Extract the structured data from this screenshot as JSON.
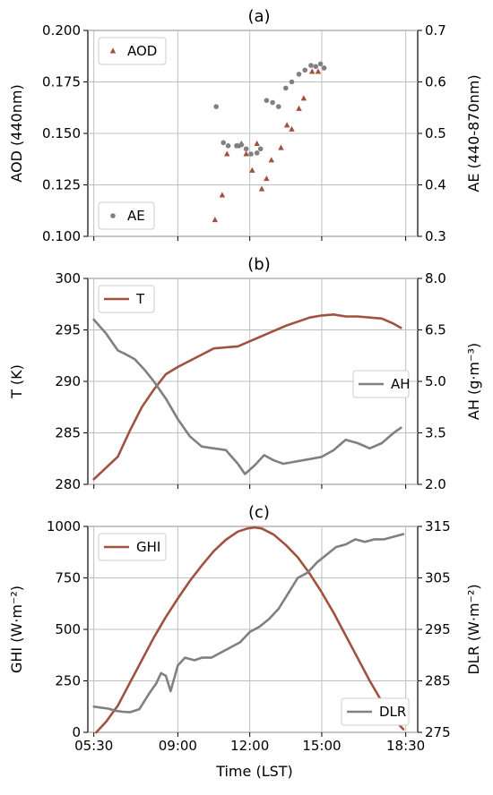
{
  "figure": {
    "xlabel": "Time (LST)"
  },
  "colors": {
    "brown": "#a0523f",
    "gray": "#808080",
    "grid": "#bfbfbf"
  },
  "panels": [
    {
      "id": "a",
      "title": "(a)",
      "xlim": [
        5.25,
        19.0
      ],
      "xticks": [
        5.5,
        9,
        12,
        15,
        18.5
      ],
      "xticklabels": [
        "",
        "",
        "",
        "",
        ""
      ],
      "left": {
        "label": "AOD (440nm)",
        "ylim": [
          0.1,
          0.2
        ],
        "ticks": [
          0.1,
          0.125,
          0.15,
          0.175,
          0.2
        ],
        "ticklabels": [
          "0.100",
          "0.125",
          "0.150",
          "0.175",
          "0.200"
        ]
      },
      "right": {
        "label": "AE (440-870nm)",
        "ylim": [
          0.3,
          0.7
        ],
        "ticks": [
          0.3,
          0.4,
          0.5,
          0.6,
          0.7
        ],
        "ticklabels": [
          "0.3",
          "0.4",
          "0.5",
          "0.6",
          "0.7"
        ]
      },
      "legends": [
        {
          "label": "AOD",
          "series": "AOD",
          "pos": "top-left"
        },
        {
          "label": "AE",
          "series": "AE",
          "pos": "bottom-left"
        }
      ]
    },
    {
      "id": "b",
      "title": "(b)",
      "xlim": [
        5.25,
        19.0
      ],
      "xticks": [
        5.5,
        9,
        12,
        15,
        18.5
      ],
      "xticklabels": [
        "",
        "",
        "",
        "",
        ""
      ],
      "left": {
        "label": "T (K)",
        "ylim": [
          280,
          300
        ],
        "ticks": [
          280,
          285,
          290,
          295,
          300
        ],
        "ticklabels": [
          "280",
          "285",
          "290",
          "295",
          "300"
        ]
      },
      "right": {
        "label": "AH (g·m⁻³)",
        "ylim": [
          2.0,
          8.0
        ],
        "ticks": [
          2.0,
          3.5,
          5.0,
          6.5,
          8.0
        ],
        "ticklabels": [
          "2.0",
          "3.5",
          "5.0",
          "6.5",
          "8.0"
        ]
      },
      "legends": [
        {
          "label": "T",
          "series": "T",
          "pos": "top-left"
        },
        {
          "label": "AH",
          "series": "AH",
          "pos": "center-right"
        }
      ]
    },
    {
      "id": "c",
      "title": "(c)",
      "xlim": [
        5.25,
        19.0
      ],
      "xticks": [
        5.5,
        9,
        12,
        15,
        18.5
      ],
      "xticklabels": [
        "05:30",
        "09:00",
        "12:00",
        "15:00",
        "18:30"
      ],
      "left": {
        "label": "GHI (W·m⁻²)",
        "ylim": [
          0,
          1000
        ],
        "ticks": [
          0,
          250,
          500,
          750,
          1000
        ],
        "ticklabels": [
          "0",
          "250",
          "500",
          "750",
          "1000"
        ]
      },
      "right": {
        "label": "DLR (W·m⁻²)",
        "ylim": [
          275,
          315
        ],
        "ticks": [
          275,
          285,
          295,
          305,
          315
        ],
        "ticklabels": [
          "275",
          "285",
          "295",
          "305",
          "315"
        ]
      },
      "legends": [
        {
          "label": "GHI",
          "series": "GHI",
          "pos": "top-left"
        },
        {
          "label": "DLR",
          "series": "DLR",
          "pos": "bottom-right"
        }
      ]
    }
  ],
  "chart_data": [
    {
      "type": "scatter",
      "title": "(a)",
      "xlabel": "",
      "series": [
        {
          "name": "AOD",
          "axis": "left",
          "marker": "triangle",
          "color": "#a0523f",
          "x": [
            10.55,
            10.85,
            11.05,
            11.5,
            11.65,
            11.85,
            12.1,
            12.3,
            12.5,
            12.7,
            12.9,
            13.3,
            13.55,
            13.75,
            14.05,
            14.25,
            14.6,
            14.85
          ],
          "y": [
            0.108,
            0.12,
            0.14,
            0.144,
            0.145,
            0.14,
            0.132,
            0.145,
            0.123,
            0.128,
            0.137,
            0.143,
            0.154,
            0.152,
            0.162,
            0.167,
            0.18,
            0.18
          ]
        },
        {
          "name": "AE",
          "axis": "right",
          "marker": "circle",
          "color": "#808080",
          "x": [
            10.6,
            10.9,
            11.1,
            11.45,
            11.65,
            11.85,
            12.05,
            12.3,
            12.45,
            12.7,
            12.95,
            13.2,
            13.5,
            13.75,
            14.05,
            14.3,
            14.55,
            14.75,
            14.95,
            15.1
          ],
          "y": [
            0.552,
            0.482,
            0.476,
            0.476,
            0.478,
            0.47,
            0.46,
            0.462,
            0.47,
            0.564,
            0.56,
            0.552,
            0.588,
            0.6,
            0.615,
            0.623,
            0.632,
            0.63,
            0.635,
            0.627
          ]
        }
      ]
    },
    {
      "type": "line",
      "title": "(b)",
      "xlabel": "",
      "series": [
        {
          "name": "T",
          "axis": "left",
          "color": "#a0523f",
          "x": [
            5.5,
            6.5,
            7.0,
            7.5,
            8.0,
            8.5,
            9.0,
            10.0,
            10.5,
            11.0,
            11.5,
            12.0,
            12.5,
            13.0,
            13.5,
            14.0,
            14.5,
            15.0,
            15.5,
            16.0,
            16.5,
            17.0,
            17.5,
            18.0,
            18.3
          ],
          "y": [
            280.5,
            282.7,
            285.2,
            287.5,
            289.2,
            290.7,
            291.4,
            292.6,
            293.2,
            293.3,
            293.4,
            293.9,
            294.4,
            294.9,
            295.4,
            295.8,
            296.2,
            296.4,
            296.5,
            296.3,
            296.3,
            296.2,
            296.1,
            295.6,
            295.2
          ]
        },
        {
          "name": "AH",
          "axis": "right",
          "color": "#808080",
          "x": [
            5.5,
            6.0,
            6.5,
            6.8,
            7.2,
            7.6,
            8.0,
            8.5,
            9.0,
            9.5,
            10.0,
            10.5,
            11.0,
            11.5,
            11.8,
            12.2,
            12.6,
            13.0,
            13.4,
            13.8,
            14.2,
            14.6,
            15.0,
            15.5,
            16.0,
            16.5,
            17.0,
            17.5,
            18.0,
            18.3
          ],
          "y": [
            6.8,
            6.4,
            5.9,
            5.8,
            5.65,
            5.35,
            5.0,
            4.5,
            3.9,
            3.4,
            3.1,
            3.05,
            3.0,
            2.6,
            2.3,
            2.55,
            2.85,
            2.7,
            2.6,
            2.65,
            2.7,
            2.75,
            2.8,
            3.0,
            3.3,
            3.2,
            3.05,
            3.2,
            3.5,
            3.65
          ]
        }
      ]
    },
    {
      "type": "line",
      "title": "(c)",
      "xlabel": "Time (LST)",
      "series": [
        {
          "name": "GHI",
          "axis": "left",
          "color": "#a0523f",
          "x": [
            5.6,
            6.0,
            6.5,
            7.0,
            7.5,
            8.0,
            8.5,
            9.0,
            9.5,
            10.0,
            10.5,
            11.0,
            11.5,
            11.9,
            12.2,
            12.5,
            13.0,
            13.5,
            14.0,
            14.5,
            15.0,
            15.5,
            16.0,
            16.5,
            17.0,
            17.5,
            18.0,
            18.2,
            18.4
          ],
          "y": [
            0,
            50,
            130,
            240,
            350,
            460,
            560,
            650,
            735,
            810,
            880,
            935,
            975,
            990,
            995,
            990,
            960,
            910,
            850,
            770,
            680,
            580,
            470,
            360,
            250,
            150,
            70,
            40,
            15
          ]
        },
        {
          "name": "DLR",
          "axis": "right",
          "color": "#808080",
          "x": [
            5.5,
            5.8,
            6.1,
            6.4,
            6.7,
            7.0,
            7.4,
            7.8,
            8.1,
            8.3,
            8.5,
            8.7,
            9.0,
            9.3,
            9.7,
            10.0,
            10.4,
            10.8,
            11.2,
            11.6,
            12.0,
            12.4,
            12.8,
            13.2,
            13.6,
            14.0,
            14.4,
            14.8,
            15.2,
            15.6,
            16.0,
            16.4,
            16.8,
            17.2,
            17.6,
            18.0,
            18.4
          ],
          "y": [
            280.0,
            279.8,
            279.6,
            279.2,
            279.0,
            278.9,
            279.5,
            282.5,
            284.5,
            286.5,
            286.0,
            283.0,
            288.0,
            289.5,
            289.0,
            289.5,
            289.5,
            290.5,
            291.5,
            292.5,
            294.5,
            295.5,
            297.0,
            299.0,
            302.0,
            305.0,
            306.0,
            308.0,
            309.5,
            311.0,
            311.5,
            312.5,
            312.0,
            312.5,
            312.5,
            313.0,
            313.5
          ]
        }
      ]
    }
  ]
}
